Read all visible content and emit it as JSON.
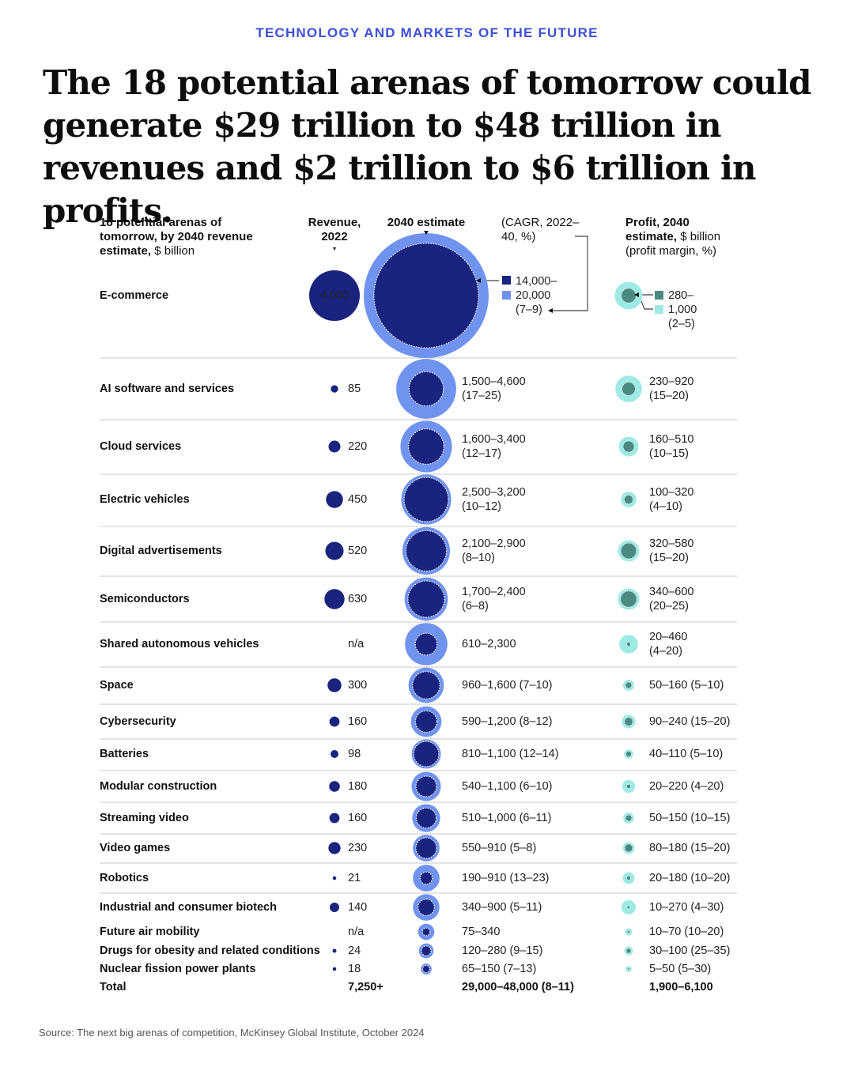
{
  "kicker": "TECHNOLOGY AND MARKETS OF THE FUTURE",
  "headline": "The 18 potential arenas of tomorrow could generate $29 trillion to $48 trillion in revenues and $2 trillion to $6 trillion in profits.",
  "headers": {
    "arenas_bold": "18 potential arenas of tomorrow, by 2040 revenue estimate,",
    "arenas_unit": " $ billion",
    "revenue_2022": "Revenue, 2022",
    "estimate_2040": "2040 estimate",
    "cagr": "(CAGR, 2022–40, %)",
    "profit_bold": "Profit, 2040 estimate,",
    "profit_unit": " $ billion (profit margin, %)"
  },
  "source": "Source: The next big arenas of competition, McKinsey Global Institute, October 2024",
  "colors": {
    "dark_navy": "#1a237e",
    "light_blue": "#6f93ef",
    "dark_teal": "#4a8a82",
    "light_teal": "#9eeae4",
    "kicker": "#3b4fd8"
  },
  "chart_data": {
    "type": "table",
    "columns": [
      "Arena",
      "Revenue, 2022",
      "2040 estimate (CAGR, 2022–40, %)",
      "Profit, 2040 estimate, $ billion (profit margin, %)"
    ],
    "rows": [
      {
        "arena": "E-commerce",
        "revenue_2022": "4,000",
        "revenue_2022_value": 4000,
        "revenue_2040_low": 14000,
        "revenue_2040_high": 20000,
        "revenue_2040_lines": [
          "14,000–",
          "20,000",
          "(7–9)"
        ],
        "profit_low": 280,
        "profit_high": 1000,
        "profit_lines": [
          "280–",
          "1,000",
          "(2–5)"
        ]
      },
      {
        "arena": "AI software and services",
        "revenue_2022": "85",
        "revenue_2022_value": 85,
        "revenue_2040_low": 1500,
        "revenue_2040_high": 4600,
        "revenue_2040_lines": [
          "1,500–4,600",
          "(17–25)"
        ],
        "profit_low": 230,
        "profit_high": 920,
        "profit_lines": [
          "230–920",
          "(15–20)"
        ]
      },
      {
        "arena": "Cloud services",
        "revenue_2022": "220",
        "revenue_2022_value": 220,
        "revenue_2040_low": 1600,
        "revenue_2040_high": 3400,
        "revenue_2040_lines": [
          "1,600–3,400",
          "(12–17)"
        ],
        "profit_low": 160,
        "profit_high": 510,
        "profit_lines": [
          "160–510",
          "(10–15)"
        ]
      },
      {
        "arena": "Electric vehicles",
        "revenue_2022": "450",
        "revenue_2022_value": 450,
        "revenue_2040_low": 2500,
        "revenue_2040_high": 3200,
        "revenue_2040_lines": [
          "2,500–3,200",
          "(10–12)"
        ],
        "profit_low": 100,
        "profit_high": 320,
        "profit_lines": [
          "100–320",
          "(4–10)"
        ]
      },
      {
        "arena": "Digital advertisements",
        "revenue_2022": "520",
        "revenue_2022_value": 520,
        "revenue_2040_low": 2100,
        "revenue_2040_high": 2900,
        "revenue_2040_lines": [
          "2,100–2,900",
          "(8–10)"
        ],
        "profit_low": 320,
        "profit_high": 580,
        "profit_lines": [
          "320–580",
          "(15–20)"
        ]
      },
      {
        "arena": "Semiconductors",
        "revenue_2022": "630",
        "revenue_2022_value": 630,
        "revenue_2040_low": 1700,
        "revenue_2040_high": 2400,
        "revenue_2040_lines": [
          "1,700–2,400",
          "(6–8)"
        ],
        "profit_low": 340,
        "profit_high": 600,
        "profit_lines": [
          "340–600",
          "(20–25)"
        ]
      },
      {
        "arena": "Shared autonomous vehicles",
        "revenue_2022": "n/a",
        "revenue_2022_value": null,
        "revenue_2040_low": 610,
        "revenue_2040_high": 2300,
        "revenue_2040_lines": [
          "610–2,300"
        ],
        "profit_low": 20,
        "profit_high": 460,
        "profit_lines": [
          "20–460",
          "(4–20)"
        ]
      },
      {
        "arena": "Space",
        "revenue_2022": "300",
        "revenue_2022_value": 300,
        "revenue_2040_low": 960,
        "revenue_2040_high": 1600,
        "revenue_2040_lines": [
          "960–1,600 (7–10)"
        ],
        "profit_low": 50,
        "profit_high": 160,
        "profit_lines": [
          "50–160 (5–10)"
        ]
      },
      {
        "arena": "Cybersecurity",
        "revenue_2022": "160",
        "revenue_2022_value": 160,
        "revenue_2040_low": 590,
        "revenue_2040_high": 1200,
        "revenue_2040_lines": [
          "590–1,200 (8–12)"
        ],
        "profit_low": 90,
        "profit_high": 240,
        "profit_lines": [
          "90–240 (15–20)"
        ]
      },
      {
        "arena": "Batteries",
        "revenue_2022": "98",
        "revenue_2022_value": 98,
        "revenue_2040_low": 810,
        "revenue_2040_high": 1100,
        "revenue_2040_lines": [
          "810–1,100 (12–14)"
        ],
        "profit_low": 40,
        "profit_high": 110,
        "profit_lines": [
          "40–110 (5–10)"
        ]
      },
      {
        "arena": "Modular construction",
        "revenue_2022": "180",
        "revenue_2022_value": 180,
        "revenue_2040_low": 540,
        "revenue_2040_high": 1100,
        "revenue_2040_lines": [
          "540–1,100 (6–10)"
        ],
        "profit_low": 20,
        "profit_high": 220,
        "profit_lines": [
          "20–220 (4–20)"
        ]
      },
      {
        "arena": "Streaming video",
        "revenue_2022": "160",
        "revenue_2022_value": 160,
        "revenue_2040_low": 510,
        "revenue_2040_high": 1000,
        "revenue_2040_lines": [
          "510–1,000 (6–11)"
        ],
        "profit_low": 50,
        "profit_high": 150,
        "profit_lines": [
          "50–150 (10–15)"
        ]
      },
      {
        "arena": "Video games",
        "revenue_2022": "230",
        "revenue_2022_value": 230,
        "revenue_2040_low": 550,
        "revenue_2040_high": 910,
        "revenue_2040_lines": [
          "550–910 (5–8)"
        ],
        "profit_low": 80,
        "profit_high": 180,
        "profit_lines": [
          "80–180 (15–20)"
        ]
      },
      {
        "arena": "Robotics",
        "revenue_2022": "21",
        "revenue_2022_value": 21,
        "revenue_2040_low": 190,
        "revenue_2040_high": 910,
        "revenue_2040_lines": [
          "190–910 (13–23)"
        ],
        "profit_low": 20,
        "profit_high": 180,
        "profit_lines": [
          "20–180 (10–20)"
        ]
      },
      {
        "arena": "Industrial and consumer biotech",
        "revenue_2022": "140",
        "revenue_2022_value": 140,
        "revenue_2040_low": 340,
        "revenue_2040_high": 900,
        "revenue_2040_lines": [
          "340–900 (5–11)"
        ],
        "profit_low": 10,
        "profit_high": 270,
        "profit_lines": [
          "10–270 (4–30)"
        ]
      },
      {
        "arena": "Future air mobility",
        "revenue_2022": "n/a",
        "revenue_2022_value": null,
        "revenue_2040_low": 75,
        "revenue_2040_high": 340,
        "revenue_2040_lines": [
          "75–340"
        ],
        "profit_low": 10,
        "profit_high": 70,
        "profit_lines": [
          "10–70 (10–20)"
        ]
      },
      {
        "arena": "Drugs for obesity and related conditions",
        "revenue_2022": "24",
        "revenue_2022_value": 24,
        "revenue_2040_low": 120,
        "revenue_2040_high": 280,
        "revenue_2040_lines": [
          "120–280 (9–15)"
        ],
        "profit_low": 30,
        "profit_high": 100,
        "profit_lines": [
          "30–100 (25–35)"
        ]
      },
      {
        "arena": "Nuclear fission power plants",
        "revenue_2022": "18",
        "revenue_2022_value": 18,
        "revenue_2040_low": 65,
        "revenue_2040_high": 150,
        "revenue_2040_lines": [
          "65–150 (7–13)"
        ],
        "profit_low": 5,
        "profit_high": 50,
        "profit_lines": [
          "5–50 (5–30)"
        ]
      }
    ],
    "total": {
      "arena": "Total",
      "revenue_2022": "7,250+",
      "revenue_2040": "29,000–48,000 (8–11)",
      "profit": "1,900–6,100"
    }
  }
}
